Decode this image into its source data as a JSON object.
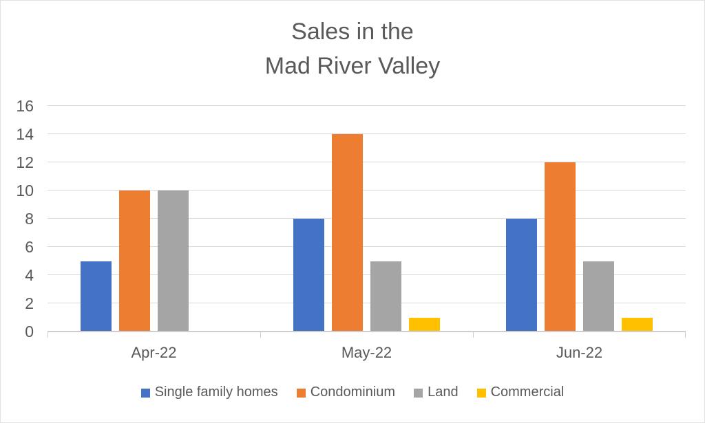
{
  "title": {
    "line1": "Sales in the",
    "line2": "Mad River Valley"
  },
  "chart_data": {
    "type": "bar",
    "title": "Sales in the Mad River Valley",
    "categories": [
      "Apr-22",
      "May-22",
      "Jun-22"
    ],
    "series": [
      {
        "name": "Single family homes",
        "color": "#4472C4",
        "values": [
          5,
          8,
          8
        ]
      },
      {
        "name": "Condominium",
        "color": "#ED7D31",
        "values": [
          10,
          14,
          12
        ]
      },
      {
        "name": "Land",
        "color": "#A5A5A5",
        "values": [
          10,
          5,
          5
        ]
      },
      {
        "name": "Commercial",
        "color": "#FFC000",
        "values": [
          0,
          1,
          1
        ]
      }
    ],
    "xlabel": "",
    "ylabel": "",
    "y_axis": {
      "min": 0,
      "max": 16,
      "step": 2,
      "ticks": [
        0,
        2,
        4,
        6,
        8,
        10,
        12,
        14,
        16
      ]
    },
    "grid": true,
    "legend_position": "bottom",
    "text_color": "#595959"
  }
}
